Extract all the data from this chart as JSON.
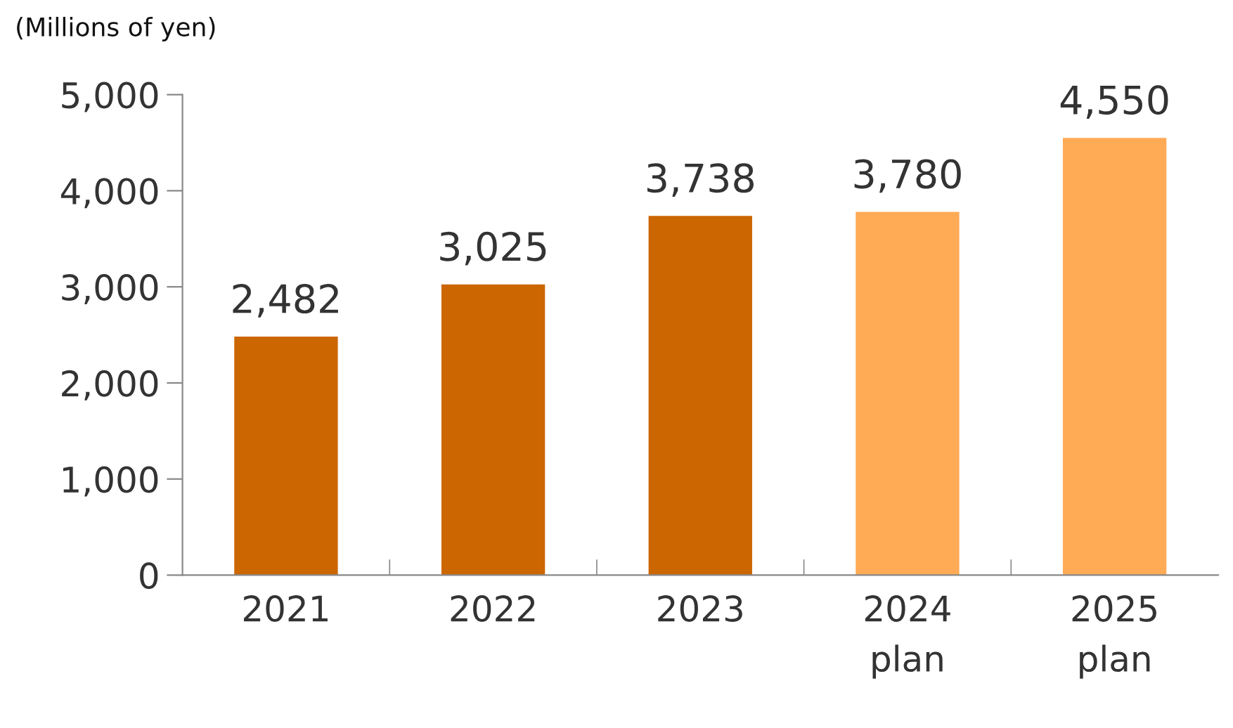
{
  "chart_data": {
    "type": "bar",
    "ylabel": "(Millions of yen)",
    "categories": [
      "2021",
      "2022",
      "2023",
      "2024\nplan",
      "2025\nplan"
    ],
    "values": [
      2482,
      3025,
      3738,
      3780,
      4550
    ],
    "colors": [
      "#cc6600",
      "#cc6600",
      "#cc6600",
      "#ffaa55",
      "#ffaa55"
    ],
    "value_labels": [
      "2,482",
      "3,025",
      "3,738",
      "3,780",
      "4,550"
    ],
    "ylim": [
      0,
      5000
    ],
    "yticks": [
      {
        "value": 0,
        "label": "0"
      },
      {
        "value": 1000,
        "label": "1,000"
      },
      {
        "value": 2000,
        "label": "2,000"
      },
      {
        "value": 3000,
        "label": "3,000"
      },
      {
        "value": 4000,
        "label": "4,000"
      },
      {
        "value": 5000,
        "label": "5,000"
      }
    ],
    "grid": false,
    "legend": false
  }
}
